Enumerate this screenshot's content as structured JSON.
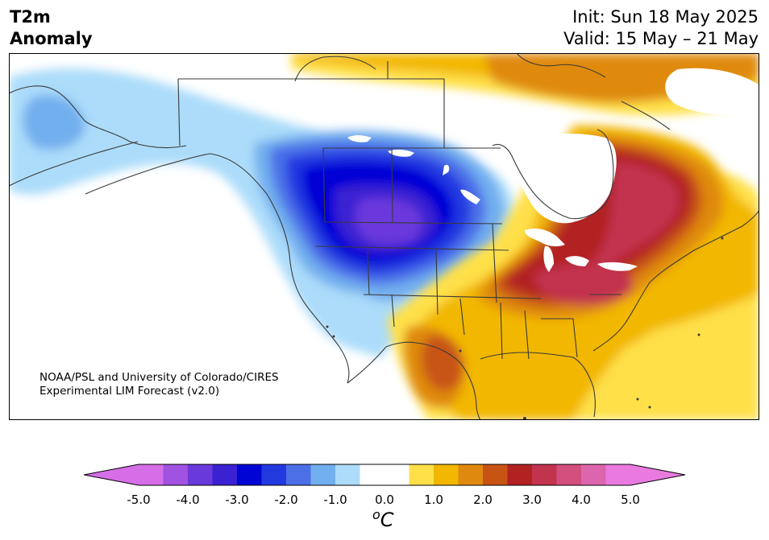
{
  "header": {
    "title_line1": "T2m",
    "title_line2": "Anomaly",
    "init": "Init: Sun 18 May 2025",
    "valid": "Valid: 15 May – 21 May"
  },
  "credit": {
    "line1": "NOAA/PSL and University of Colorado/CIRES",
    "line2": "Experimental LIM Forecast (v2.0)"
  },
  "colorbar": {
    "unit": "°C",
    "unit_base": "C",
    "unit_sup": "o",
    "ticks": [
      "-5.0",
      "-4.0",
      "-3.0",
      "-2.0",
      "-1.0",
      "0.0",
      "1.0",
      "2.0",
      "3.0",
      "4.0",
      "5.0"
    ],
    "colors": [
      "#d66ee8",
      "#a052e0",
      "#6a39dc",
      "#3a21d2",
      "#0005d6",
      "#2339e0",
      "#4c6fe8",
      "#72afee",
      "#acdcfa",
      "#ffffff",
      "#ffffff",
      "#ffe049",
      "#f2b700",
      "#df8a0e",
      "#c85414",
      "#b22222",
      "#c2334e",
      "#d14e7d",
      "#dd65ad",
      "#ea7ae0"
    ],
    "over_color": "#ea7ae0",
    "under_color": "#d66ee8"
  },
  "map": {
    "region": "North America",
    "variable": "2m temperature anomaly"
  }
}
